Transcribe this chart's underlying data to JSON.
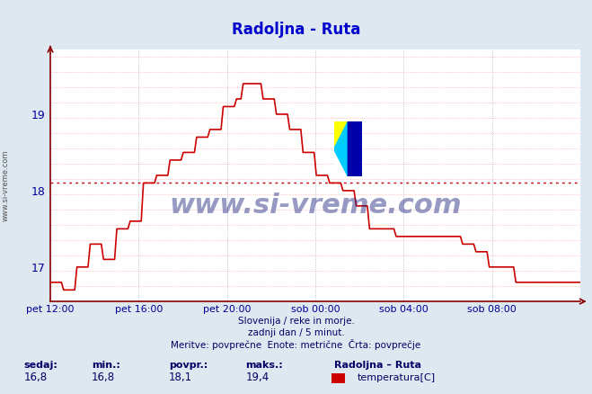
{
  "title": "Radoljna - Ruta",
  "title_color": "#0000cc",
  "line_color": "#cc0000",
  "background_color": "#dde8f0",
  "plot_bg_color": "#ffffff",
  "grid_color_h": "#ffaaaa",
  "grid_color_v": "#aaaacc",
  "avg_line_value": 18.1,
  "avg_line_color": "#cc0000",
  "ylim": [
    16.55,
    19.85
  ],
  "yticks": [
    17,
    18,
    19
  ],
  "xlabel_color": "#000099",
  "ylabel_color": "#000099",
  "footer_lines": [
    "Slovenija / reke in morje.",
    "zadnji dan / 5 minut.",
    "Meritve: povprečne  Enote: metrične  Črta: povprečje"
  ],
  "footer_color": "#000066",
  "stats_labels": [
    "sedaj:",
    "min.:",
    "povpr.:",
    "maks.:"
  ],
  "stats_values": [
    "16,8",
    "16,8",
    "18,1",
    "19,4"
  ],
  "legend_title": "Radoljna – Ruta",
  "legend_label": "temperatura[C]",
  "legend_color": "#cc0000",
  "watermark": "www.si-vreme.com",
  "xtick_labels": [
    "pet 12:00",
    "pet 16:00",
    "pet 20:00",
    "sob 00:00",
    "sob 04:00",
    "sob 08:00"
  ],
  "n_points": 240,
  "logo_colors": [
    "#ffff00",
    "#00ccff",
    "#0000aa"
  ],
  "sidebar_text": "www.si-vreme.com"
}
